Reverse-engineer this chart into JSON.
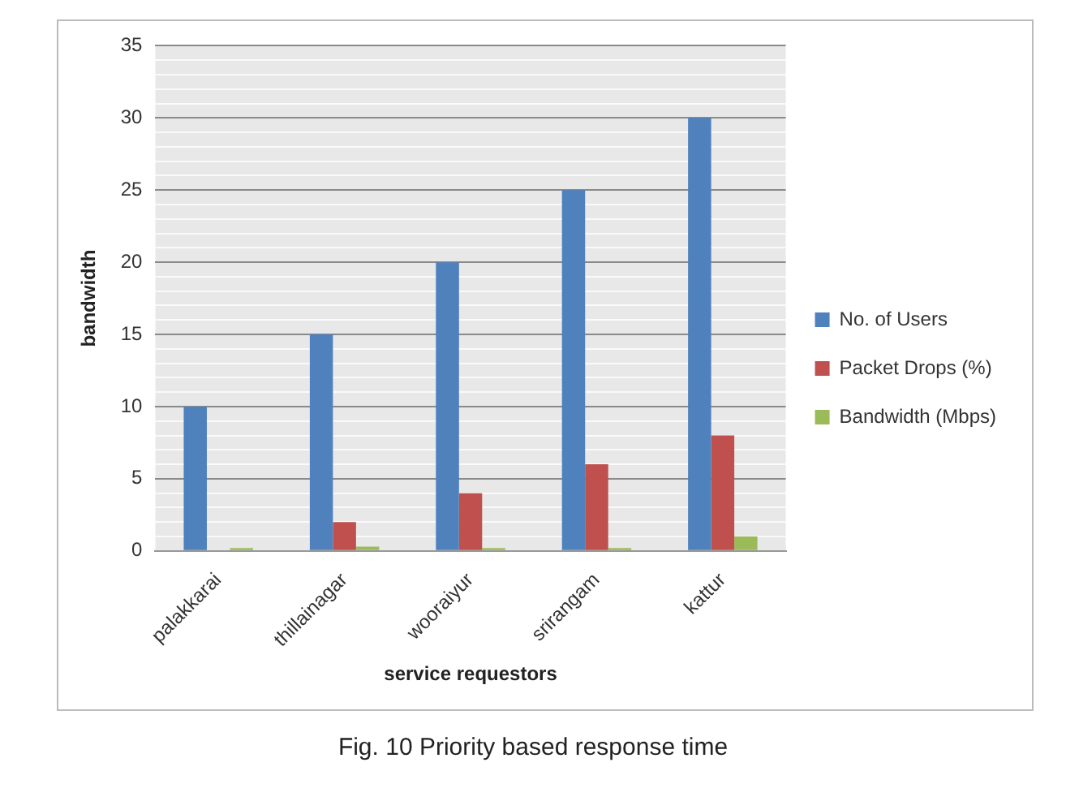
{
  "chart_data": {
    "type": "bar",
    "xlabel": "service requestors",
    "ylabel": "bandwidth",
    "categories": [
      "palakkarai",
      "thillainagar",
      "wooraiyur",
      "srirangam",
      "kattur"
    ],
    "series": [
      {
        "name": "No. of Users",
        "color": "#4f81bd",
        "values": [
          10,
          15,
          20,
          25,
          30
        ]
      },
      {
        "name": "Packet Drops (%)",
        "color": "#c0504d",
        "values": [
          0,
          2,
          4,
          6,
          8
        ]
      },
      {
        "name": "Bandwidth (Mbps)",
        "color": "#9bbb59",
        "values": [
          0.2,
          0.3,
          0.2,
          0.2,
          1
        ]
      }
    ],
    "ylim": [
      0,
      35
    ],
    "yticks": [
      0,
      {
        "value": 1,
        "label": null
      },
      {
        "value": 2,
        "label": null
      },
      {
        "value": 3,
        "label": null
      },
      {
        "value": 4,
        "label": null
      },
      5,
      {
        "value": 6,
        "label": null
      },
      {
        "value": 7,
        "label": null
      },
      {
        "value": 8,
        "label": null
      },
      {
        "value": 9,
        "label": null
      },
      10,
      {
        "value": 11,
        "label": null
      },
      {
        "value": 12,
        "label": null
      },
      {
        "value": 13,
        "label": null
      },
      {
        "value": 14,
        "label": null
      },
      15,
      {
        "value": 16,
        "label": null
      },
      {
        "value": 17,
        "label": null
      },
      {
        "value": 18,
        "label": null
      },
      {
        "value": 19,
        "label": null
      },
      20,
      {
        "value": 21,
        "label": null
      },
      {
        "value": 22,
        "label": null
      },
      {
        "value": 23,
        "label": null
      },
      {
        "value": 24,
        "label": null
      },
      25,
      {
        "value": 26,
        "label": null
      },
      {
        "value": 27,
        "label": null
      },
      {
        "value": 28,
        "label": null
      },
      {
        "value": 29,
        "label": null
      },
      30,
      {
        "value": 31,
        "label": null
      },
      {
        "value": 32,
        "label": null
      },
      {
        "value": 33,
        "label": null
      },
      {
        "value": 34,
        "label": null
      },
      35
    ],
    "grid": "y",
    "legend": "right",
    "annotations": [
      "Fig. 10 Priority based response time"
    ]
  }
}
